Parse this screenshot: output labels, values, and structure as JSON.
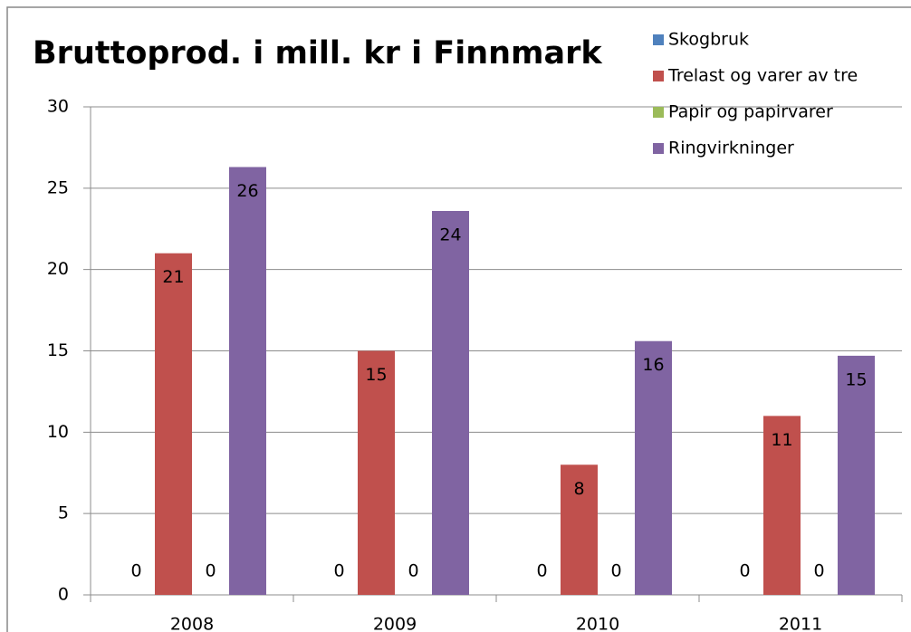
{
  "chart_data": {
    "type": "bar",
    "title": "Bruttoprod. i mill. kr i Finnmark",
    "categories": [
      "2008",
      "2009",
      "2010",
      "2011"
    ],
    "series": [
      {
        "name": "Skogbruk",
        "color": "#4f81bd",
        "values": [
          0,
          0,
          0,
          0
        ],
        "value_labels": [
          "0",
          "0",
          "0",
          "0"
        ]
      },
      {
        "name": "Trelast og varer av tre",
        "color": "#c0504d",
        "values": [
          21.0,
          15.0,
          8.0,
          11.0
        ],
        "value_labels": [
          "21",
          "15",
          "8",
          "11"
        ]
      },
      {
        "name": "Papir og papirvarer",
        "color": "#9bbb59",
        "values": [
          0,
          0,
          0,
          0
        ],
        "value_labels": [
          "0",
          "0",
          "0",
          "0"
        ]
      },
      {
        "name": "Ringvirkninger",
        "color": "#8064a2",
        "values": [
          26.3,
          23.6,
          15.6,
          14.7
        ],
        "value_labels": [
          "26",
          "24",
          "16",
          "15"
        ]
      }
    ],
    "ylim": [
      0,
      30
    ],
    "yticks": [
      0,
      5,
      10,
      15,
      20,
      25,
      30
    ],
    "grid": true,
    "legend": "top-right"
  }
}
